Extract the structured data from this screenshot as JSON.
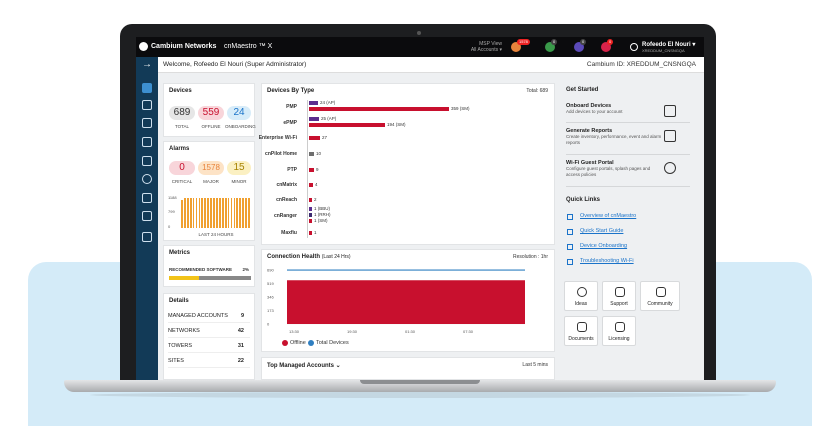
{
  "topbar": {
    "brand": "Cambium Networks",
    "product": "cnMaestro ™ X",
    "msp_view": "MSP View",
    "msp_accounts": "All Accounts ▾",
    "badge_1": "1578",
    "badge_2": "0",
    "badge_3": "0",
    "badge_4": "0",
    "user_name": "Rofeedo El Nouri ▾",
    "user_id": "XREDDUM_CNSNGQA"
  },
  "header": {
    "welcome": "Welcome, Rofeedo El Nouri (Super Administrator)",
    "cambium_id": "Cambium ID: XREDDUM_CNSNGQA"
  },
  "devices": {
    "title": "Devices",
    "total": "689",
    "total_label": "TOTAL",
    "offline": "559",
    "offline_label": "OFFLINE",
    "onboarding": "24",
    "onboarding_label": "ONBOARDING"
  },
  "alarms": {
    "title": "Alarms",
    "critical": "0",
    "critical_label": "CRITICAL",
    "major": "1578",
    "major_label": "MAJOR",
    "minor": "15",
    "minor_label": "MINOR",
    "y_ticks": [
      "1188",
      "799",
      "0"
    ],
    "x_label": "LAST 24 HOURS"
  },
  "metrics": {
    "title": "Metrics",
    "recommended_label": "RECOMMENDED SOFTWARE",
    "recommended_value": "2%",
    "recommended_fraction": 0.02
  },
  "details": {
    "title": "Details",
    "rows": [
      {
        "label": "MANAGED ACCOUNTS",
        "value": "9"
      },
      {
        "label": "NETWORKS",
        "value": "42"
      },
      {
        "label": "TOWERS",
        "value": "31"
      },
      {
        "label": "SITES",
        "value": "22"
      }
    ]
  },
  "devices_by_type": {
    "title": "Devices By Type",
    "total": "Total: 689",
    "rows": [
      {
        "cat": "PMP",
        "labels": [
          "24 (AP)",
          "359 (SM)"
        ]
      },
      {
        "cat": "ePMP",
        "labels": [
          "25 (AP)",
          "194 (SM)"
        ]
      },
      {
        "cat": "Enterprise Wi-Fi",
        "labels": [
          "27"
        ]
      },
      {
        "cat": "cnPilot Home",
        "labels": [
          "10"
        ]
      },
      {
        "cat": "PTP",
        "labels": [
          "9"
        ]
      },
      {
        "cat": "cnMatrix",
        "labels": [
          "4"
        ]
      },
      {
        "cat": "cnReach",
        "labels": [
          "2"
        ]
      },
      {
        "cat": "cnRanger",
        "labels": [
          "1 (BBU)",
          "1 (RRH)",
          "1 (SM)"
        ]
      },
      {
        "cat": "Maxfiu",
        "labels": [
          "1"
        ]
      }
    ]
  },
  "connection_health": {
    "title": "Connection Health",
    "subtitle": "(Last 24 Hrs)",
    "resolution": "Resolution : 1hr",
    "y_ticks": [
      "690",
      "519",
      "346",
      "173",
      "0"
    ],
    "x_ticks": [
      "13:30",
      "19:30",
      "01:30",
      "07:30"
    ],
    "legend_offline": "Offline",
    "legend_total": "Total Devices"
  },
  "chart_data": {
    "type": "area",
    "x": [
      "13:30",
      "19:30",
      "01:30",
      "07:30"
    ],
    "series": [
      {
        "name": "Offline",
        "values": [
          559,
          559,
          559,
          559
        ]
      },
      {
        "name": "Total Devices",
        "values": [
          689,
          689,
          689,
          689
        ]
      }
    ],
    "ylim": [
      0,
      690
    ],
    "title": "Connection Health",
    "colors": {
      "Offline": "#c8102e",
      "Total Devices": "#2f7fc1"
    }
  },
  "top_accounts": {
    "title": "Top Managed Accounts ⌄",
    "period": "Last 5 mins"
  },
  "get_started": {
    "title": "Get Started",
    "items": [
      {
        "title": "Onboard Devices",
        "desc": "Add devices to your account"
      },
      {
        "title": "Generate Reports",
        "desc": "Create inventory, performance, event and alarm reports"
      },
      {
        "title": "Wi-Fi Guest Portal",
        "desc": "Configure guest portals, splash pages and access policies"
      }
    ]
  },
  "quick_links": {
    "title": "Quick Links",
    "links": [
      "Overview of cnMaestro",
      "Quick Start Guide",
      "Device Onboarding",
      "Troubleshooting Wi-Fi"
    ]
  },
  "tiles": [
    "Ideas",
    "Support",
    "Community",
    "Documents",
    "Licensing"
  ],
  "colors": {
    "brand_red": "#c8102e",
    "purple": "#5b2d8e",
    "sidebar": "#123a57",
    "link": "#1a73c9",
    "major": "#f0a030"
  }
}
